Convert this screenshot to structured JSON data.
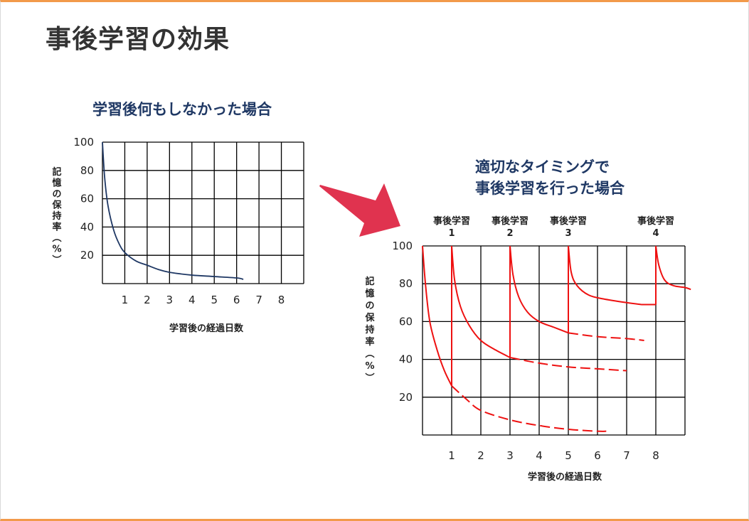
{
  "slide": {
    "title": "事後学習の効果",
    "accent_color": "#f29a4a"
  },
  "arrow": {
    "icon": "arrow-right-icon",
    "color": "#e0334f"
  },
  "chart_data": [
    {
      "type": "line",
      "title": "学習後何もしなかった場合",
      "xlabel": "学習後の経過日数",
      "ylabel": "記憶の保持率（%）",
      "xlim": [
        0,
        9
      ],
      "ylim": [
        0,
        100
      ],
      "x_ticks": [
        "1",
        "2",
        "3",
        "4",
        "5",
        "6",
        "7",
        "8"
      ],
      "y_ticks": [
        "20",
        "40",
        "60",
        "80",
        "100"
      ],
      "grid": true,
      "color": "#1f3864",
      "series": [
        {
          "x": [
            0,
            0.1,
            0.25,
            0.5,
            0.75,
            1,
            1.5,
            2,
            2.5,
            3,
            4,
            5,
            6,
            6.3
          ],
          "y": [
            100,
            75,
            55,
            38,
            28,
            22,
            16,
            13,
            10,
            8,
            6,
            5,
            4,
            3
          ]
        }
      ]
    },
    {
      "type": "line",
      "title": "適切なタイミングで\n事後学習を行った場合",
      "xlabel": "学習後の経過日数",
      "ylabel": "記憶の保持率（%）",
      "xlim": [
        0,
        9
      ],
      "ylim": [
        0,
        100
      ],
      "x_ticks": [
        "1",
        "2",
        "3",
        "4",
        "5",
        "6",
        "7",
        "8"
      ],
      "y_ticks": [
        "20",
        "40",
        "60",
        "80",
        "100"
      ],
      "grid": true,
      "color": "#ee1111",
      "annotations": [
        {
          "text": "事後学習\n1",
          "x": 1
        },
        {
          "text": "事後学習\n2",
          "x": 3
        },
        {
          "text": "事後学習\n3",
          "x": 5
        },
        {
          "text": "事後学習\n4",
          "x": 8
        }
      ],
      "series": [
        {
          "style": "solid",
          "x": [
            0,
            0.1,
            0.25,
            0.5,
            0.75,
            1
          ],
          "y": [
            100,
            80,
            60,
            45,
            34,
            26
          ]
        },
        {
          "style": "solid",
          "x": [
            1,
            1
          ],
          "y": [
            26,
            100
          ]
        },
        {
          "style": "solid",
          "x": [
            1,
            1.1,
            1.3,
            1.6,
            2,
            2.5,
            3
          ],
          "y": [
            100,
            82,
            68,
            58,
            50,
            45,
            41
          ]
        },
        {
          "style": "solid",
          "x": [
            3,
            3
          ],
          "y": [
            41,
            100
          ]
        },
        {
          "style": "solid",
          "x": [
            3,
            3.1,
            3.3,
            3.6,
            4,
            4.5,
            5
          ],
          "y": [
            100,
            85,
            73,
            65,
            60,
            57,
            54
          ]
        },
        {
          "style": "solid",
          "x": [
            5,
            5
          ],
          "y": [
            54,
            100
          ]
        },
        {
          "style": "solid",
          "x": [
            5,
            5.1,
            5.3,
            5.7,
            6.2,
            7,
            7.5
          ],
          "y": [
            100,
            86,
            79,
            74,
            72,
            70,
            69
          ]
        },
        {
          "style": "solid",
          "x": [
            7.5,
            8
          ],
          "y": [
            69,
            69
          ]
        },
        {
          "style": "solid",
          "x": [
            8,
            8
          ],
          "y": [
            69,
            100
          ]
        },
        {
          "style": "solid",
          "x": [
            8,
            8.1,
            8.3,
            8.6,
            9,
            9.2
          ],
          "y": [
            100,
            90,
            82,
            79,
            78,
            77
          ]
        },
        {
          "style": "dashed",
          "x": [
            1,
            1.5,
            2,
            3,
            4,
            5,
            6,
            6.3
          ],
          "y": [
            26,
            19,
            13,
            8,
            5,
            3,
            2,
            2
          ]
        },
        {
          "style": "dashed",
          "x": [
            3,
            4,
            5,
            6,
            7
          ],
          "y": [
            41,
            38,
            36,
            35,
            34
          ]
        },
        {
          "style": "dashed",
          "x": [
            5,
            6,
            7,
            7.6
          ],
          "y": [
            54,
            52,
            51,
            50
          ]
        }
      ]
    }
  ]
}
